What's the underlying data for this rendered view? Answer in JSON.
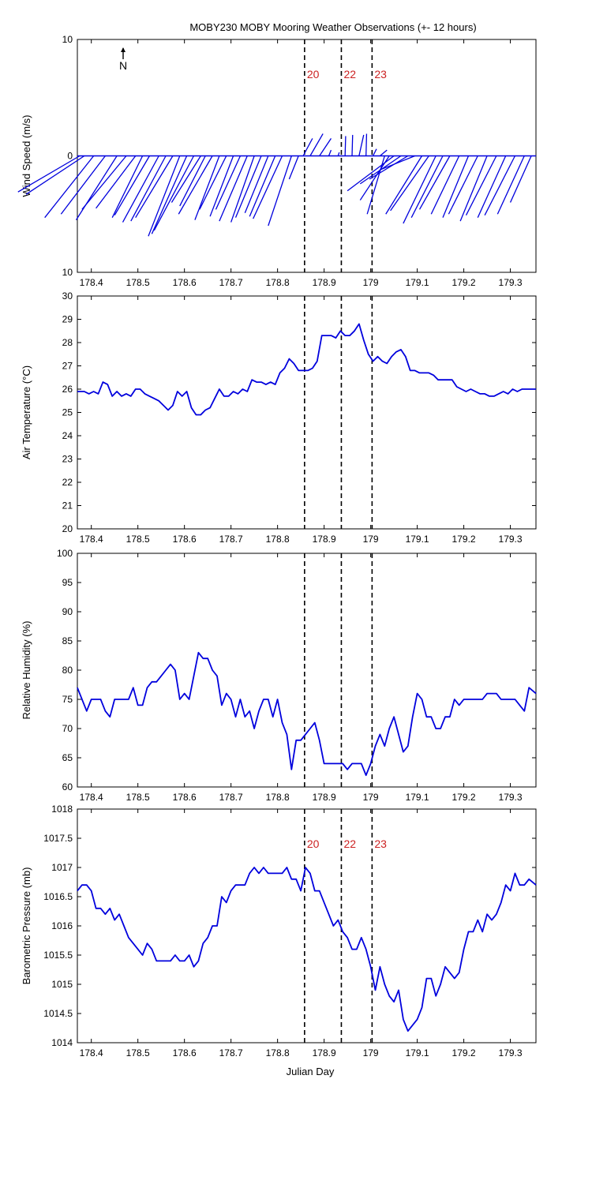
{
  "title": "MOBY230 MOBY Mooring Weather Observations (+- 12 hours)",
  "colors": {
    "data": "#0000dd",
    "event": "#000000",
    "event_label": "#cc2222",
    "axes": "#000000"
  },
  "chart_data": [
    {
      "id": "wind",
      "type": "line",
      "ylabel": "Wind Speed (m/s)",
      "ylim": [
        -10,
        10
      ],
      "y_tick_values": [
        -10,
        0,
        10
      ],
      "y_tick_labels": [
        "10",
        "0",
        "10"
      ],
      "xlim": [
        178.37,
        179.355
      ],
      "x_tick_labels": [
        "178.4",
        "178.5",
        "178.6",
        "178.7",
        "178.8",
        "178.9",
        "179",
        "179.1",
        "179.2",
        "179.3"
      ],
      "north_label": "N",
      "event_labels": [
        "20",
        "22",
        "23"
      ],
      "sticks": [
        [
          178.375,
          -5.3,
          -3.1
        ],
        [
          178.385,
          -5.0,
          -3.3
        ],
        [
          178.405,
          -4.2,
          -5.3
        ],
        [
          178.43,
          -3.8,
          -5.0
        ],
        [
          178.455,
          -3.5,
          -5.5
        ],
        [
          178.475,
          -3.8,
          -4.6
        ],
        [
          178.495,
          -3.4,
          -4.5
        ],
        [
          178.51,
          -2.6,
          -5.3
        ],
        [
          178.525,
          -3.0,
          -5.1
        ],
        [
          178.545,
          -3.1,
          -5.7
        ],
        [
          178.56,
          -3.0,
          -5.6
        ],
        [
          178.575,
          -3.2,
          -5.3
        ],
        [
          178.59,
          -2.7,
          -6.9
        ],
        [
          178.605,
          -3.0,
          -6.7
        ],
        [
          178.62,
          -3.4,
          -6.4
        ],
        [
          178.635,
          -2.5,
          -4.0
        ],
        [
          178.645,
          -2.2,
          -4.3
        ],
        [
          178.66,
          -2.9,
          -5.0
        ],
        [
          178.675,
          -2.1,
          -5.5
        ],
        [
          178.69,
          -2.3,
          -4.6
        ],
        [
          178.705,
          -2.0,
          -5.2
        ],
        [
          178.72,
          -2.1,
          -4.6
        ],
        [
          178.735,
          -2.4,
          -5.6
        ],
        [
          178.75,
          -2.0,
          -5.7
        ],
        [
          178.765,
          -2.2,
          -5.3
        ],
        [
          178.78,
          -2.0,
          -4.9
        ],
        [
          178.795,
          -2.2,
          -5.2
        ],
        [
          178.81,
          -2.5,
          -5.4
        ],
        [
          178.83,
          -2.0,
          -6.0
        ],
        [
          178.845,
          -0.8,
          -2.0
        ],
        [
          178.855,
          0.8,
          1.5
        ],
        [
          178.87,
          1.1,
          1.9
        ],
        [
          178.89,
          1.0,
          1.5
        ],
        [
          178.91,
          0.2,
          0.5
        ],
        [
          178.93,
          0.1,
          0.3
        ],
        [
          178.945,
          0.05,
          1.7
        ],
        [
          178.96,
          0.05,
          1.8
        ],
        [
          178.975,
          0.4,
          1.8
        ],
        [
          178.99,
          0.05,
          1.9
        ],
        [
          179.005,
          0.3,
          0.6
        ],
        [
          179.02,
          0.6,
          0.5
        ],
        [
          179.03,
          -1.5,
          -5.0
        ],
        [
          179.04,
          -2.5,
          -3.8
        ],
        [
          179.05,
          -4.0,
          -3.0
        ],
        [
          179.065,
          -3.5,
          -2.4
        ],
        [
          179.08,
          -3.3,
          -2.0
        ],
        [
          179.095,
          -3.0,
          -1.2
        ],
        [
          179.11,
          -3.1,
          -5.0
        ],
        [
          179.125,
          -3.3,
          -4.7
        ],
        [
          179.14,
          -2.8,
          -5.8
        ],
        [
          179.155,
          -2.7,
          -5.3
        ],
        [
          179.17,
          -2.6,
          -4.6
        ],
        [
          179.19,
          -2.4,
          -5.0
        ],
        [
          179.21,
          -2.2,
          -5.3
        ],
        [
          179.23,
          -2.5,
          -5.0
        ],
        [
          179.25,
          -2.3,
          -5.6
        ],
        [
          179.27,
          -2.6,
          -5.1
        ],
        [
          179.29,
          -2.4,
          -5.3
        ],
        [
          179.31,
          -2.6,
          -5.1
        ],
        [
          179.33,
          -2.3,
          -5.0
        ],
        [
          179.345,
          -1.8,
          -4.0
        ]
      ]
    },
    {
      "id": "airtemp",
      "type": "line",
      "ylabel": "Air Temperature (°C)",
      "ylim": [
        20,
        30
      ],
      "y_tick_values": [
        20,
        21,
        22,
        23,
        24,
        25,
        26,
        27,
        28,
        29,
        30
      ],
      "y_tick_labels": [
        "20",
        "21",
        "22",
        "23",
        "24",
        "25",
        "26",
        "27",
        "28",
        "29",
        "30"
      ],
      "xlim": [
        178.37,
        179.355
      ],
      "x_tick_labels": [
        "178.4",
        "178.5",
        "178.6",
        "178.7",
        "178.8",
        "178.9",
        "179",
        "179.1",
        "179.2",
        "179.3"
      ],
      "x": [
        178.37,
        178.385,
        178.395,
        178.405,
        178.415,
        178.425,
        178.435,
        178.445,
        178.455,
        178.465,
        178.475,
        178.485,
        178.495,
        178.505,
        178.515,
        178.525,
        178.535,
        178.545,
        178.555,
        178.565,
        178.575,
        178.585,
        178.595,
        178.605,
        178.615,
        178.625,
        178.635,
        178.645,
        178.655,
        178.665,
        178.675,
        178.685,
        178.695,
        178.705,
        178.715,
        178.725,
        178.735,
        178.745,
        178.755,
        178.765,
        178.775,
        178.785,
        178.795,
        178.805,
        178.815,
        178.825,
        178.835,
        178.845,
        178.855,
        178.865,
        178.875,
        178.885,
        178.895,
        178.905,
        178.915,
        178.925,
        178.935,
        178.945,
        178.955,
        178.965,
        178.975,
        178.985,
        178.995,
        179.005,
        179.015,
        179.025,
        179.035,
        179.045,
        179.055,
        179.065,
        179.075,
        179.085,
        179.095,
        179.105,
        179.115,
        179.125,
        179.135,
        179.145,
        179.155,
        179.165,
        179.175,
        179.185,
        179.195,
        179.205,
        179.215,
        179.225,
        179.235,
        179.245,
        179.255,
        179.265,
        179.275,
        179.285,
        179.295,
        179.305,
        179.315,
        179.325,
        179.335,
        179.345,
        179.355
      ],
      "y": [
        25.9,
        25.9,
        25.8,
        25.9,
        25.8,
        26.3,
        26.2,
        25.7,
        25.9,
        25.7,
        25.8,
        25.7,
        26.0,
        26.0,
        25.8,
        25.7,
        25.6,
        25.5,
        25.3,
        25.1,
        25.3,
        25.9,
        25.7,
        25.9,
        25.2,
        24.9,
        24.9,
        25.1,
        25.2,
        25.6,
        26.0,
        25.7,
        25.7,
        25.9,
        25.8,
        26.0,
        25.9,
        26.4,
        26.3,
        26.3,
        26.2,
        26.3,
        26.2,
        26.7,
        26.9,
        27.3,
        27.1,
        26.8,
        26.8,
        26.8,
        26.9,
        27.2,
        28.3,
        28.3,
        28.3,
        28.2,
        28.5,
        28.3,
        28.3,
        28.5,
        28.8,
        28.1,
        27.5,
        27.2,
        27.4,
        27.2,
        27.1,
        27.4,
        27.6,
        27.7,
        27.4,
        26.8,
        26.8,
        26.7,
        26.7,
        26.7,
        26.6,
        26.4,
        26.4,
        26.4,
        26.4,
        26.1,
        26.0,
        25.9,
        26.0,
        25.9,
        25.8,
        25.8,
        25.7,
        25.7,
        25.8,
        25.9,
        25.8,
        26.0,
        25.9,
        26.0,
        26.0,
        26.0,
        26.0
      ]
    },
    {
      "id": "humidity",
      "type": "line",
      "ylabel": "Relative Humidity (%)",
      "ylim": [
        60,
        100
      ],
      "y_tick_values": [
        60,
        65,
        70,
        75,
        80,
        85,
        90,
        95,
        100
      ],
      "y_tick_labels": [
        "60",
        "65",
        "70",
        "75",
        "80",
        "85",
        "90",
        "95",
        "100"
      ],
      "xlim": [
        178.37,
        179.355
      ],
      "x_tick_labels": [
        "178.4",
        "178.5",
        "178.6",
        "178.7",
        "178.8",
        "178.9",
        "179",
        "179.1",
        "179.2",
        "179.3"
      ],
      "x": [
        178.37,
        178.38,
        178.39,
        178.4,
        178.41,
        178.42,
        178.43,
        178.44,
        178.45,
        178.46,
        178.47,
        178.48,
        178.49,
        178.5,
        178.51,
        178.52,
        178.53,
        178.54,
        178.55,
        178.56,
        178.57,
        178.58,
        178.59,
        178.6,
        178.61,
        178.62,
        178.63,
        178.64,
        178.65,
        178.66,
        178.67,
        178.68,
        178.69,
        178.7,
        178.71,
        178.72,
        178.73,
        178.74,
        178.75,
        178.76,
        178.77,
        178.78,
        178.79,
        178.8,
        178.81,
        178.82,
        178.83,
        178.84,
        178.85,
        178.86,
        178.87,
        178.88,
        178.89,
        178.9,
        178.91,
        178.92,
        178.93,
        178.94,
        178.95,
        178.96,
        178.97,
        178.98,
        178.99,
        179.0,
        179.01,
        179.02,
        179.03,
        179.04,
        179.05,
        179.06,
        179.07,
        179.08,
        179.09,
        179.1,
        179.11,
        179.12,
        179.13,
        179.14,
        179.15,
        179.16,
        179.17,
        179.18,
        179.19,
        179.2,
        179.21,
        179.22,
        179.23,
        179.24,
        179.25,
        179.26,
        179.27,
        179.28,
        179.29,
        179.3,
        179.31,
        179.32,
        179.33,
        179.34,
        179.355
      ],
      "y": [
        77,
        75,
        73,
        75,
        75,
        75,
        73,
        72,
        75,
        75,
        75,
        75,
        77,
        74,
        74,
        77,
        78,
        78,
        79,
        80,
        81,
        80,
        75,
        76,
        75,
        79,
        83,
        82,
        82,
        80,
        79,
        74,
        76,
        75,
        72,
        75,
        72,
        73,
        70,
        73,
        75,
        75,
        72,
        75,
        71,
        69,
        63,
        68,
        68,
        69,
        70,
        71,
        68,
        64,
        64,
        64,
        64,
        64,
        63,
        64,
        64,
        64,
        62,
        64,
        67,
        69,
        67,
        70,
        72,
        69,
        66,
        67,
        72,
        76,
        75,
        72,
        72,
        70,
        70,
        72,
        72,
        75,
        74,
        75,
        75,
        75,
        75,
        75,
        76,
        76,
        76,
        75,
        75,
        75,
        75,
        74,
        73,
        77,
        76
      ]
    },
    {
      "id": "pressure",
      "type": "line",
      "ylabel": "Barometric Pressure (mb)",
      "xlabel": "Julian Day",
      "ylim": [
        1014,
        1018
      ],
      "y_tick_values": [
        1014,
        1014.5,
        1015,
        1015.5,
        1016,
        1016.5,
        1017,
        1017.5,
        1018
      ],
      "y_tick_labels": [
        "1014",
        "1014.5",
        "1015",
        "1015.5",
        "1016",
        "1016.5",
        "1017",
        "1017.5",
        "1018"
      ],
      "xlim": [
        178.37,
        179.355
      ],
      "x_tick_labels": [
        "178.4",
        "178.5",
        "178.6",
        "178.7",
        "178.8",
        "178.9",
        "179",
        "179.1",
        "179.2",
        "179.3"
      ],
      "event_labels": [
        "20",
        "22",
        "23"
      ],
      "x": [
        178.37,
        178.38,
        178.39,
        178.4,
        178.41,
        178.42,
        178.43,
        178.44,
        178.45,
        178.46,
        178.47,
        178.48,
        178.49,
        178.5,
        178.51,
        178.52,
        178.53,
        178.54,
        178.55,
        178.56,
        178.57,
        178.58,
        178.59,
        178.6,
        178.61,
        178.62,
        178.63,
        178.64,
        178.65,
        178.66,
        178.67,
        178.68,
        178.69,
        178.7,
        178.71,
        178.72,
        178.73,
        178.74,
        178.75,
        178.76,
        178.77,
        178.78,
        178.79,
        178.8,
        178.81,
        178.82,
        178.83,
        178.84,
        178.85,
        178.86,
        178.87,
        178.88,
        178.89,
        178.9,
        178.91,
        178.92,
        178.93,
        178.94,
        178.95,
        178.96,
        178.97,
        178.98,
        178.99,
        179.0,
        179.01,
        179.02,
        179.03,
        179.04,
        179.05,
        179.06,
        179.07,
        179.08,
        179.09,
        179.1,
        179.11,
        179.12,
        179.13,
        179.14,
        179.15,
        179.16,
        179.17,
        179.18,
        179.19,
        179.2,
        179.21,
        179.22,
        179.23,
        179.24,
        179.25,
        179.26,
        179.27,
        179.28,
        179.29,
        179.3,
        179.31,
        179.32,
        179.33,
        179.34,
        179.355
      ],
      "y": [
        1016.6,
        1016.7,
        1016.7,
        1016.6,
        1016.3,
        1016.3,
        1016.2,
        1016.3,
        1016.1,
        1016.2,
        1016.0,
        1015.8,
        1015.7,
        1015.6,
        1015.5,
        1015.7,
        1015.6,
        1015.4,
        1015.4,
        1015.4,
        1015.4,
        1015.5,
        1015.4,
        1015.4,
        1015.5,
        1015.3,
        1015.4,
        1015.7,
        1015.8,
        1016.0,
        1016.0,
        1016.5,
        1016.4,
        1016.6,
        1016.7,
        1016.7,
        1016.7,
        1016.9,
        1017.0,
        1016.9,
        1017.0,
        1016.9,
        1016.9,
        1016.9,
        1016.9,
        1017.0,
        1016.8,
        1016.8,
        1016.6,
        1017.0,
        1016.9,
        1016.6,
        1016.6,
        1016.4,
        1016.2,
        1016.0,
        1016.1,
        1015.9,
        1015.8,
        1015.6,
        1015.6,
        1015.8,
        1015.6,
        1015.3,
        1014.9,
        1015.3,
        1015.0,
        1014.8,
        1014.7,
        1014.9,
        1014.4,
        1014.2,
        1014.3,
        1014.4,
        1014.6,
        1015.1,
        1015.1,
        1014.8,
        1015.0,
        1015.3,
        1015.2,
        1015.1,
        1015.2,
        1015.6,
        1015.9,
        1015.9,
        1016.1,
        1015.9,
        1016.2,
        1016.1,
        1016.2,
        1016.4,
        1016.7,
        1016.6,
        1016.9,
        1016.7,
        1016.7,
        1016.8,
        1016.7
      ]
    }
  ],
  "events": {
    "x": [
      178.858,
      178.937,
      179.003
    ],
    "labels": [
      "20",
      "22",
      "23"
    ]
  }
}
